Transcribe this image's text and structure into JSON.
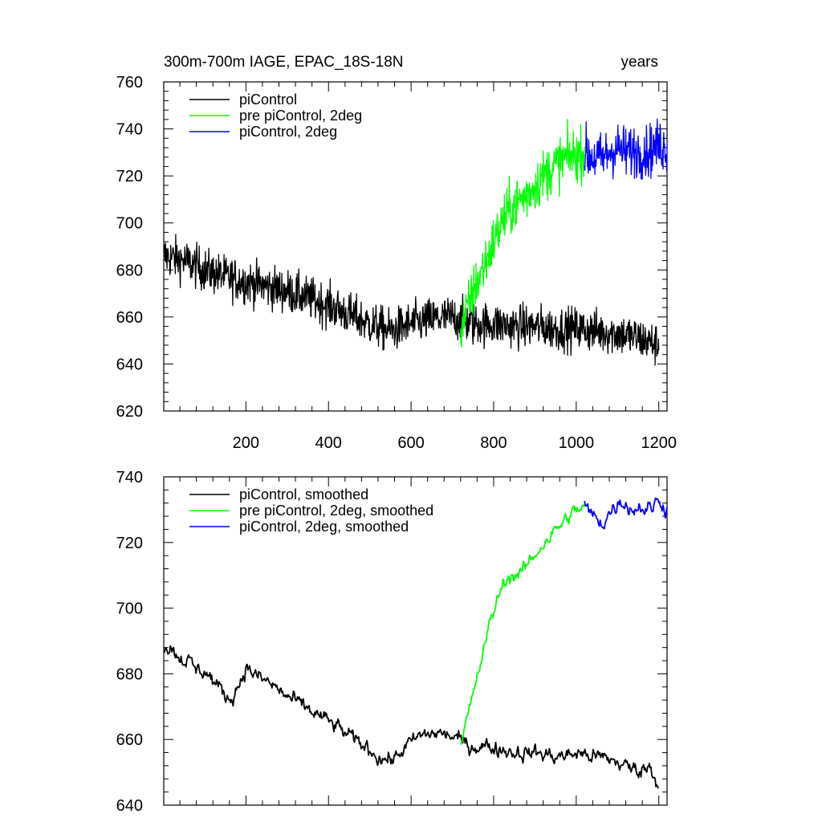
{
  "figure": {
    "title_left": "300m-700m IAGE, EPAC_18S-18N",
    "title_right": "years"
  },
  "chart_data": [
    {
      "type": "line",
      "title": "300m-700m IAGE, EPAC_18S-18N",
      "xlabel": "years",
      "ylabel": "",
      "xlim": [
        1,
        1220
      ],
      "ylim": [
        620,
        760
      ],
      "x_ticks": [
        200,
        400,
        600,
        800,
        1000,
        1200
      ],
      "y_ticks": [
        620,
        640,
        660,
        680,
        700,
        720,
        740,
        760
      ],
      "legend_position": "top-left",
      "series": [
        {
          "name": "piControl",
          "color": "#000000",
          "x": [
            1,
            50,
            100,
            150,
            200,
            250,
            300,
            350,
            400,
            450,
            500,
            550,
            600,
            650,
            700,
            750,
            800,
            850,
            900,
            950,
            1000,
            1050,
            1100,
            1150,
            1200
          ],
          "values": [
            686,
            684,
            680,
            677,
            675,
            673,
            671,
            668,
            665,
            661,
            657,
            654,
            657,
            659,
            660,
            657,
            657,
            656,
            656,
            655,
            655,
            654,
            653,
            651,
            648
          ]
        },
        {
          "name": "pre piControl, 2deg",
          "color": "#00ff00",
          "x": [
            720,
            730,
            745,
            760,
            780,
            800,
            820,
            840,
            860,
            880,
            900,
            920,
            940,
            960,
            980,
            1000,
            1020
          ],
          "values": [
            655,
            660,
            668,
            675,
            683,
            692,
            700,
            706,
            709,
            712,
            716,
            720,
            723,
            726,
            728,
            729,
            730
          ]
        },
        {
          "name": "piControl, 2deg",
          "color": "#0000ff",
          "x": [
            1020,
            1040,
            1060,
            1080,
            1100,
            1120,
            1140,
            1160,
            1180,
            1200,
            1220
          ],
          "values": [
            730,
            728,
            727,
            730,
            732,
            730,
            731,
            730,
            731,
            733,
            732
          ]
        }
      ]
    },
    {
      "type": "line",
      "title": "",
      "xlabel": "",
      "ylabel": "",
      "xlim": [
        1,
        1220
      ],
      "ylim": [
        640,
        740
      ],
      "x_ticks": [
        200,
        400,
        600,
        800,
        1000,
        1200
      ],
      "y_ticks": [
        640,
        660,
        680,
        700,
        720,
        740
      ],
      "legend_position": "top-left",
      "series": [
        {
          "name": "piControl, smoothed",
          "color": "#000000",
          "x": [
            1,
            20,
            40,
            60,
            80,
            100,
            120,
            140,
            160,
            180,
            200,
            230,
            260,
            300,
            340,
            380,
            420,
            460,
            500,
            530,
            560,
            580,
            620,
            660,
            700,
            740,
            780,
            820,
            860,
            900,
            940,
            980,
            1000,
            1040,
            1080,
            1100,
            1120,
            1140,
            1160,
            1180,
            1195,
            1200
          ],
          "values": [
            688,
            688,
            685,
            684,
            681,
            681,
            678,
            675,
            672,
            676,
            682,
            679,
            677,
            673,
            670,
            667,
            664,
            660,
            657,
            654,
            654,
            657,
            661,
            662,
            661,
            658,
            658,
            657,
            656,
            656,
            655,
            655,
            656,
            655,
            654,
            653,
            652,
            651,
            651,
            652,
            647,
            645
          ]
        },
        {
          "name": "pre piControl, 2deg, smoothed",
          "color": "#00ff00",
          "x": [
            720,
            735,
            750,
            765,
            780,
            795,
            810,
            825,
            840,
            855,
            870,
            885,
            900,
            915,
            930,
            945,
            960,
            975,
            990,
            1005,
            1020
          ],
          "values": [
            660,
            666,
            673,
            681,
            690,
            697,
            703,
            708,
            710,
            710,
            711,
            714,
            716,
            719,
            721,
            723,
            725,
            727,
            729,
            730,
            731
          ]
        },
        {
          "name": "piControl, 2deg, smoothed",
          "color": "#0000ff",
          "x": [
            1020,
            1035,
            1050,
            1065,
            1080,
            1095,
            1110,
            1125,
            1140,
            1155,
            1170,
            1185,
            1200,
            1210,
            1220
          ],
          "values": [
            731,
            729,
            727,
            726,
            729,
            731,
            733,
            731,
            730,
            731,
            730,
            731,
            733,
            732,
            730
          ]
        }
      ]
    }
  ]
}
